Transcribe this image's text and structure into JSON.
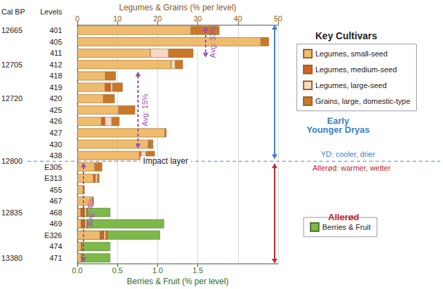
{
  "chart_data": {
    "type": "bar",
    "orientation": "horizontal",
    "stacked": true,
    "grid": true,
    "categories": [
      "401",
      "405",
      "411",
      "412",
      "418",
      "419",
      "420",
      "425",
      "426",
      "427",
      "430",
      "438",
      "E305",
      "E313",
      "455",
      "467",
      "468",
      "469",
      "E326",
      "474",
      "471"
    ],
    "xlabel": "Legumes & Grains (% per level)",
    "xlim": [
      0,
      50
    ],
    "xticks": [
      0,
      10,
      20,
      30,
      40,
      50
    ],
    "x2label": "Berries & Fruit (% per level)",
    "x2lim": [
      0,
      2.5
    ],
    "x2ticks": [
      {
        "value": 0,
        "label": "0.0"
      },
      {
        "value": 0.5,
        "label": "0.5"
      },
      {
        "value": 1,
        "label": "1.0"
      },
      {
        "value": 1.5,
        "label": "1.5"
      }
    ],
    "series": [
      {
        "name": "Legumes, small-seed",
        "color": "#efbb6c",
        "values": [
          28.3,
          45.7,
          18.2,
          23.4,
          7.0,
          6.9,
          6.5,
          10.3,
          6.0,
          21.8,
          17.7,
          15.5,
          4.3,
          4.0,
          1.5,
          3.8,
          0.9,
          1.0,
          5.7,
          1.0,
          1.0
        ]
      },
      {
        "name": "Legumes, medium-seed",
        "color": "#d4602a",
        "values": [
          null,
          null,
          null,
          null,
          null,
          1.4,
          null,
          null,
          0.9,
          null,
          0.5,
          0.4,
          null,
          0.5,
          null,
          null,
          0.9,
          0.9,
          0.9,
          null,
          null
        ]
      },
      {
        "name": "Legumes, large-seed",
        "color": "#f9d9c4",
        "values": [
          null,
          null,
          4.5,
          1.0,
          null,
          0.5,
          null,
          null,
          1.7,
          null,
          null,
          1.2,
          null,
          0.5,
          null,
          null,
          0.5,
          0.5,
          0.5,
          null,
          null
        ]
      },
      {
        "name": "Grains, large, domestic-type",
        "color": "#c9782a",
        "values": [
          7.1,
          2.0,
          6.2,
          1.9,
          2.6,
          2.5,
          2.8,
          4.1,
          1.9,
          0.4,
          0.7,
          2.2,
          1.9,
          0.5,
          0.3,
          0.3,
          0.3,
          0.3,
          0.5,
          0.3,
          0.3
        ]
      },
      {
        "name": "Berries & Fruit",
        "color": "#7fb84a",
        "axis": "x2",
        "values": [
          null,
          null,
          null,
          null,
          null,
          null,
          null,
          null,
          null,
          null,
          null,
          null,
          null,
          null,
          null,
          null,
          0.41,
          1.08,
          1.03,
          0.41,
          0.41
        ]
      }
    ],
    "legend_title": "Key Cultivars",
    "y_header": [
      "Cal BP",
      "Levels"
    ],
    "cal_bp": [
      {
        "level": "401",
        "label": "12665"
      },
      {
        "level": "412",
        "label": "12705"
      },
      {
        "level": "420",
        "label": "12720"
      },
      {
        "level": "468",
        "label": "12835"
      },
      {
        "level": "471",
        "label": "13380"
      }
    ],
    "impact": {
      "text": "Impact layer",
      "cal_bp": "12800",
      "after_level": "438",
      "above": "YD: cooler, drier",
      "below": "Allerød: warmer, wetter"
    },
    "periods": [
      {
        "text": "Early\nYounger Dryas",
        "from": "401",
        "to": "438",
        "color": "#3a7fc8"
      },
      {
        "text": "Allerød",
        "from": "E305",
        "to": "471",
        "color": "#c0282a"
      }
    ],
    "averages": [
      {
        "text": "Avg: 33%",
        "from": "401",
        "to": "411"
      },
      {
        "text": "Avg: 15%",
        "from": "418",
        "to": "430"
      },
      {
        "text": "Avg: 4%",
        "from": "E305",
        "to": "471"
      }
    ]
  }
}
